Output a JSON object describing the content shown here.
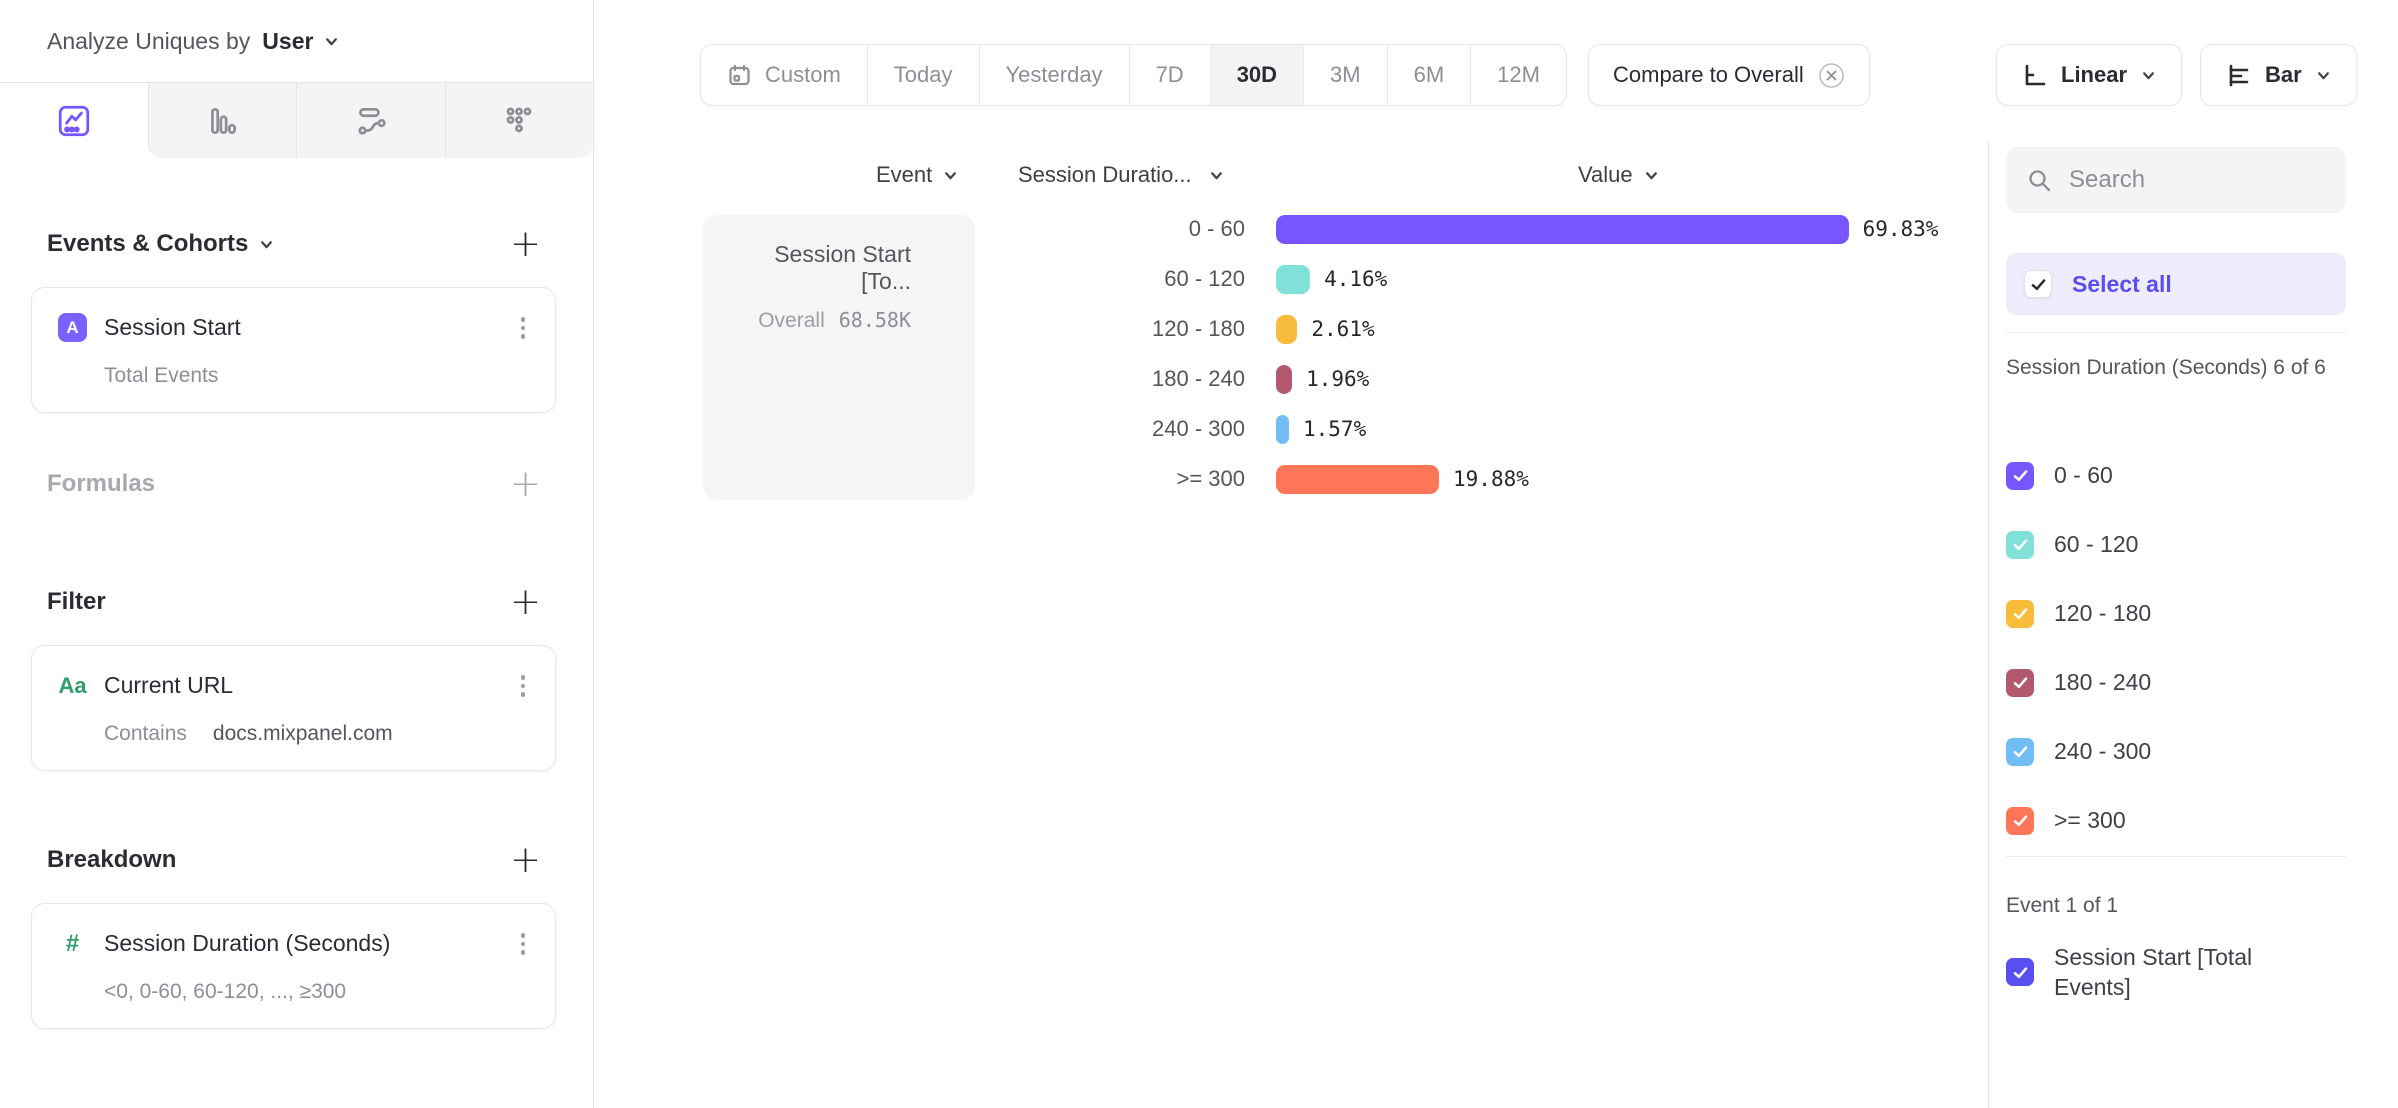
{
  "header": {
    "label": "Analyze Uniques by",
    "value": "User"
  },
  "sidebar": {
    "tabs": [
      {
        "icon": "insights-icon",
        "selected": true
      },
      {
        "icon": "funnels-icon",
        "selected": false
      },
      {
        "icon": "flows-icon",
        "selected": false
      },
      {
        "icon": "retention-icon",
        "selected": false
      }
    ],
    "events_cohorts": {
      "title": "Events & Cohorts",
      "card": {
        "badge": "A",
        "title": "Session Start",
        "subtitle": "Total Events"
      }
    },
    "formulas": {
      "title": "Formulas"
    },
    "filter": {
      "title": "Filter",
      "card": {
        "badge": "Aa",
        "title": "Current URL",
        "operator": "Contains",
        "value": "docs.mixpanel.com"
      }
    },
    "breakdown": {
      "title": "Breakdown",
      "card": {
        "badge": "#",
        "title": "Session Duration (Seconds)",
        "subtitle": "<0, 0-60, 60-120, ..., ≥300"
      }
    }
  },
  "toolbar": {
    "date_ranges": [
      "Custom",
      "Today",
      "Yesterday",
      "7D",
      "30D",
      "3M",
      "6M",
      "12M"
    ],
    "selected_range": "30D",
    "compare_label": "Compare to Overall",
    "scale_label": "Linear",
    "chart_type_label": "Bar"
  },
  "chart": {
    "columns": {
      "event": "Event",
      "breakdown": "Session Duratio...",
      "value": "Value"
    },
    "event_card": {
      "title": "Session Start [To...",
      "overall_label": "Overall",
      "overall_value": "68.58K"
    }
  },
  "chart_data": {
    "type": "bar",
    "orientation": "horizontal",
    "title": "",
    "series_name": "Session Start [Total Events]",
    "overall_value": "68.58K",
    "categories": [
      "0 - 60",
      "60 - 120",
      "120 - 180",
      "180 - 240",
      "240 - 300",
      ">= 300"
    ],
    "values": [
      69.83,
      4.16,
      2.61,
      1.96,
      1.57,
      19.88
    ],
    "value_labels": [
      "69.83%",
      "4.16%",
      "2.61%",
      "1.96%",
      "1.57%",
      "19.88%"
    ],
    "colors": [
      "#7856ff",
      "#80e1d9",
      "#f8bc3b",
      "#b2596e",
      "#72bef4",
      "#ff7557"
    ],
    "xlim": [
      0,
      100
    ],
    "grid": false,
    "legend_position": "right-panel"
  },
  "right_panel": {
    "search_placeholder": "Search",
    "select_all_label": "Select all",
    "group1_header": "Session Duration (Seconds) 6 of 6",
    "group1_items": [
      {
        "label": "0 - 60",
        "color": "#7856ff",
        "checked": true
      },
      {
        "label": "60 - 120",
        "color": "#80e1d9",
        "checked": true
      },
      {
        "label": "120 - 180",
        "color": "#f8bc3b",
        "checked": true
      },
      {
        "label": "180 - 240",
        "color": "#b2596e",
        "checked": true
      },
      {
        "label": "240 - 300",
        "color": "#72bef4",
        "checked": true
      },
      {
        "label": ">= 300",
        "color": "#ff7557",
        "checked": true
      }
    ],
    "group2_header": "Event 1 of 1",
    "group2_items": [
      {
        "label": "Session Start [Total Events]",
        "color": "#574ff2",
        "checked": true
      }
    ]
  }
}
